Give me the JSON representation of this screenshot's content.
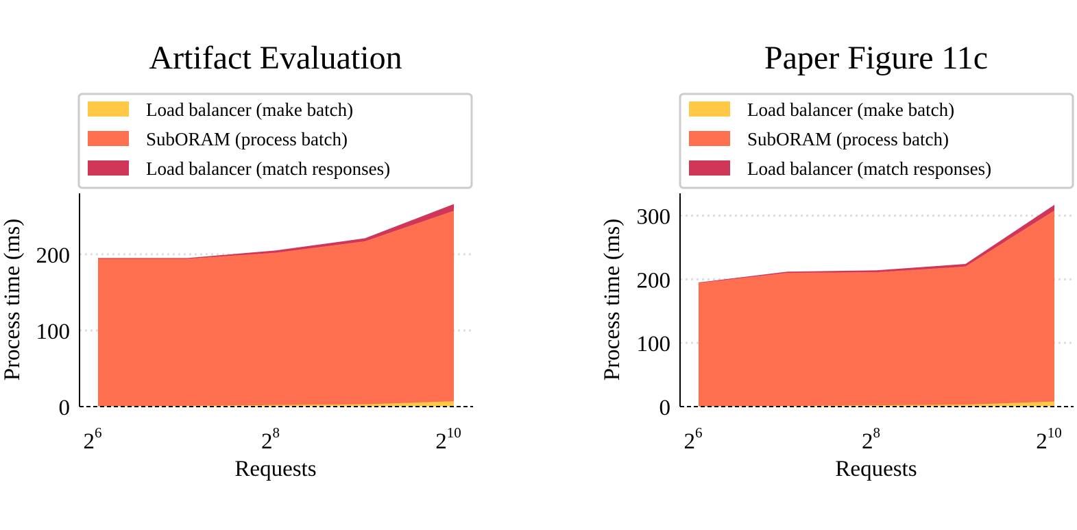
{
  "colors": {
    "make_batch": "#ffc845",
    "process_batch": "#fe6f50",
    "match_responses": "#d03657",
    "grid": "#dddddd",
    "legend_border": "#cccccc"
  },
  "legend_labels": [
    "Load balancer (make batch)",
    "SubORAM (process batch)",
    "Load balancer (match responses)"
  ],
  "chart_data": [
    {
      "type": "area",
      "stacked": true,
      "title": "Artifact Evaluation",
      "xlabel": "Requests",
      "ylabel": "Process time (ms)",
      "xscale": "log2",
      "x": [
        64,
        128,
        256,
        512,
        1024
      ],
      "xticks": [
        {
          "base": "2",
          "exp": "6",
          "value": 64
        },
        {
          "base": "2",
          "exp": "8",
          "value": 256
        },
        {
          "base": "2",
          "exp": "10",
          "value": 1024
        }
      ],
      "ylim": [
        0,
        280
      ],
      "yticks": [
        0,
        100,
        200
      ],
      "grid": "horizontal dotted",
      "legend_position": "top",
      "series": [
        {
          "name": "Load balancer (make batch)",
          "color_key": "make_batch",
          "values": [
            0.5,
            1,
            2,
            3,
            7
          ]
        },
        {
          "name": "SubORAM (process batch)",
          "color_key": "process_batch",
          "values": [
            193.5,
            193,
            200,
            214,
            250
          ]
        },
        {
          "name": "Load balancer (match responses)",
          "color_key": "match_responses",
          "values": [
            1,
            1,
            3,
            4,
            9
          ]
        }
      ]
    },
    {
      "type": "area",
      "stacked": true,
      "title": "Paper Figure 11c",
      "xlabel": "Requests",
      "ylabel": "Process time (ms)",
      "xscale": "log2",
      "x": [
        64,
        128,
        256,
        512,
        1024
      ],
      "xticks": [
        {
          "base": "2",
          "exp": "6",
          "value": 64
        },
        {
          "base": "2",
          "exp": "8",
          "value": 256
        },
        {
          "base": "2",
          "exp": "10",
          "value": 1024
        }
      ],
      "ylim": [
        0,
        335
      ],
      "yticks": [
        0,
        100,
        200,
        300
      ],
      "grid": "horizontal dotted",
      "legend_position": "top",
      "series": [
        {
          "name": "Load balancer (make batch)",
          "color_key": "make_batch",
          "values": [
            0.5,
            1,
            2,
            3,
            8
          ]
        },
        {
          "name": "SubORAM (process batch)",
          "color_key": "process_batch",
          "values": [
            193.5,
            209,
            209,
            217,
            300
          ]
        },
        {
          "name": "Load balancer (match responses)",
          "color_key": "match_responses",
          "values": [
            1,
            2,
            3,
            4,
            9
          ]
        }
      ]
    }
  ]
}
